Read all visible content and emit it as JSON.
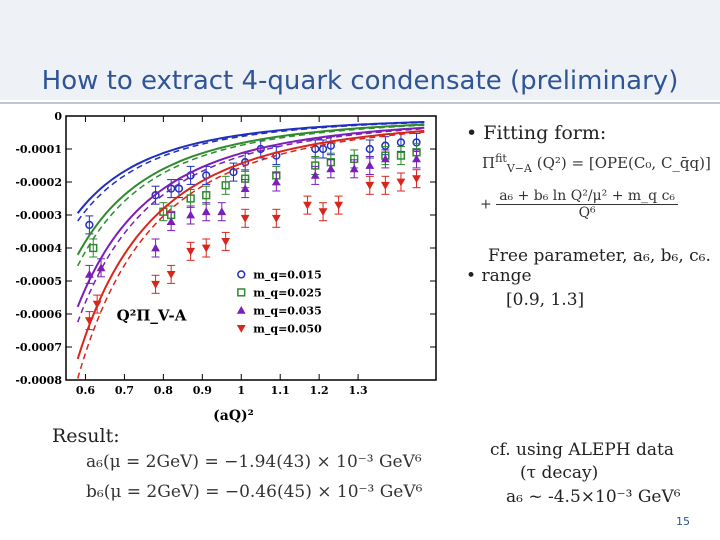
{
  "slide": {
    "title": "How to extract 4-quark condensate (preliminary)",
    "page_number": "15"
  },
  "bullets": {
    "fitting_form": "Fitting form:",
    "formula_lhs": "Π",
    "formula_lhs_sup": "fit",
    "formula_lhs_sub": "V−A",
    "formula_rhs": "(Q²) = [OPE(C₀, C_q̄q)]",
    "formula_plus": "+",
    "formula_num": "a₆ + b₆ ln Q²/μ² + m_q c₆",
    "formula_den": "Q⁶",
    "free_param": "Free parameter, a₆, b₆, c₆.",
    "range_label": "range",
    "range_value": "[0.9, 1.3]"
  },
  "result": {
    "label": "Result:",
    "a6": "a₆(μ = 2GeV) = −1.94(43) × 10⁻³ GeV⁶",
    "b6": "b₆(μ = 2GeV) = −0.46(45) × 10⁻³ GeV⁶"
  },
  "cf": {
    "line1": "cf.  using ALEPH data",
    "line2": "(τ decay)",
    "line3": "a₆ ~ -4.5×10⁻³ GeV⁶"
  },
  "chart_data": {
    "type": "scatter",
    "title": "",
    "xlabel": "(aQ)²",
    "ylabel": "",
    "inner_label": "Q²Π_V-A",
    "xlim": [
      0.55,
      1.5
    ],
    "ylim": [
      -0.0008,
      0.0
    ],
    "x_ticks": [
      "0.6",
      "0.7",
      "0.8",
      "0.9",
      "1",
      "1.1",
      "1.2",
      "1.3"
    ],
    "y_ticks": [
      "0",
      "-0.0001",
      "-0.0002",
      "-0.0003",
      "-0.0004",
      "-0.0005",
      "-0.0006",
      "-0.0007",
      "-0.0008"
    ],
    "legend_position": "center-right",
    "series": [
      {
        "name": "m_q=0.015",
        "color": "#1f2fbf",
        "marker": "circle",
        "a": -0.00028,
        "b": 0.0016,
        "x": [
          0.61,
          0.78,
          0.82,
          0.84,
          0.87,
          0.91,
          0.98,
          1.01,
          1.05,
          1.09,
          1.19,
          1.21,
          1.23,
          1.33,
          1.37,
          1.41,
          1.45
        ],
        "y": [
          -0.00033,
          -0.00024,
          -0.00022,
          -0.00022,
          -0.00018,
          -0.00018,
          -0.00017,
          -0.00014,
          -0.0001,
          -0.00012,
          -0.0001,
          -0.0001,
          -9e-05,
          -0.0001,
          -9e-05,
          -8e-05,
          -8e-05
        ]
      },
      {
        "name": "m_q=0.025",
        "color": "#2e8b2e",
        "marker": "square",
        "a": -0.0004,
        "b": 0.0018,
        "x": [
          0.62,
          0.8,
          0.82,
          0.87,
          0.91,
          0.96,
          1.01,
          1.09,
          1.19,
          1.23,
          1.29,
          1.37,
          1.41,
          1.45
        ],
        "y": [
          -0.0004,
          -0.00029,
          -0.0003,
          -0.00025,
          -0.00024,
          -0.00021,
          -0.00019,
          -0.00018,
          -0.00015,
          -0.00014,
          -0.00013,
          -0.00012,
          -0.00012,
          -0.00011
        ]
      },
      {
        "name": "m_q=0.035",
        "color": "#7a1fb8",
        "marker": "triangle-up",
        "a": -0.00055,
        "b": 0.002,
        "x": [
          0.61,
          0.64,
          0.78,
          0.82,
          0.87,
          0.91,
          0.95,
          1.01,
          1.09,
          1.19,
          1.23,
          1.29,
          1.33,
          1.37,
          1.45
        ],
        "y": [
          -0.00048,
          -0.00046,
          -0.0004,
          -0.00032,
          -0.0003,
          -0.00029,
          -0.00029,
          -0.00022,
          -0.0002,
          -0.00018,
          -0.00016,
          -0.00016,
          -0.00015,
          -0.00013,
          -0.00013
        ]
      },
      {
        "name": "m_q=0.050",
        "color": "#d9261c",
        "marker": "triangle-down",
        "a": -0.0007,
        "b": 0.0022,
        "x": [
          0.61,
          0.63,
          0.78,
          0.82,
          0.87,
          0.91,
          0.96,
          1.01,
          1.09,
          1.17,
          1.21,
          1.25,
          1.33,
          1.37,
          1.41,
          1.45
        ],
        "y": [
          -0.00062,
          -0.00057,
          -0.00051,
          -0.00048,
          -0.00041,
          -0.0004,
          -0.00038,
          -0.00031,
          -0.00031,
          -0.00027,
          -0.00029,
          -0.00027,
          -0.00021,
          -0.00021,
          -0.0002,
          -0.00019
        ]
      }
    ]
  }
}
